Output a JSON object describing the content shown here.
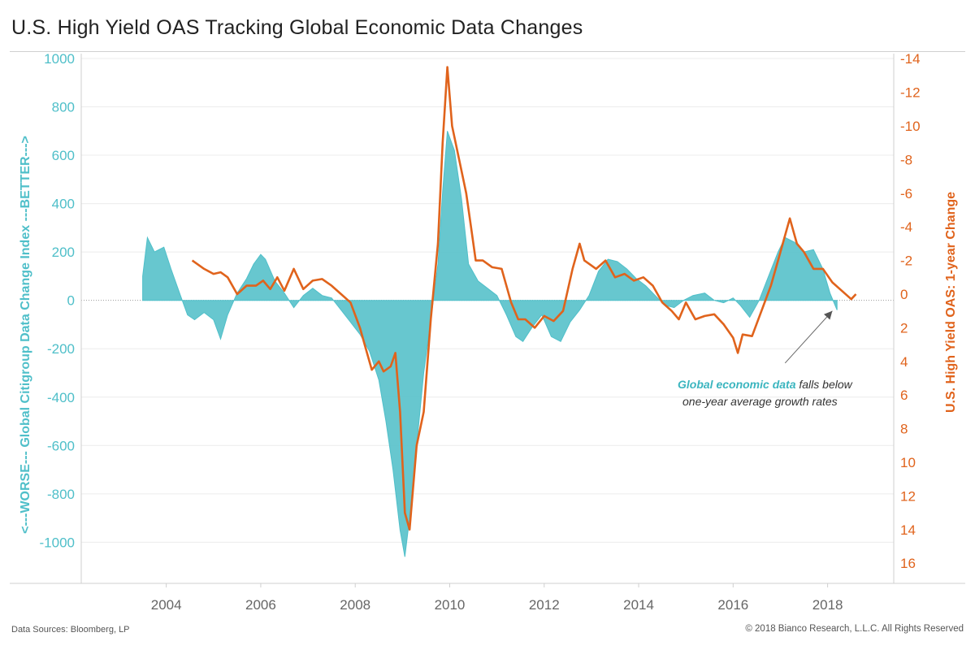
{
  "title": "U.S. High Yield OAS Tracking Global Economic Data Changes",
  "footer": {
    "source": "Data Sources: Bloomberg, LP",
    "copyright": "© 2018 Bianco Research, L.L.C. All Rights Reserved"
  },
  "annotation": {
    "highlight": "Global economic data",
    "line1_rest": " falls below",
    "line2": "one-year average growth rates"
  },
  "colors": {
    "citi": "#4fbfc9",
    "citi_fill": "#5fc4cc",
    "oas": "#e0631c",
    "grid": "#ececec"
  },
  "chart_data": {
    "type": "area",
    "title": "U.S. High Yield OAS Tracking Global Economic Data Changes",
    "x_tick_labels": [
      "2004",
      "2006",
      "2008",
      "2010",
      "2012",
      "2014",
      "2016",
      "2018"
    ],
    "xlim": [
      2002.2,
      2019.4
    ],
    "y_left": {
      "label": "<---WORSE--- Global Citigroup Data Change Index ---BETTER--->",
      "ticks": [
        1000,
        800,
        600,
        400,
        200,
        0,
        -200,
        -400,
        -600,
        -800,
        -1000
      ],
      "ylim": [
        -1170,
        1020
      ]
    },
    "y_right": {
      "label": "U.S. High Yield OAS: 1-year Change",
      "inverted": true,
      "ticks": [
        -14,
        -12,
        -10,
        -8,
        -6,
        -4,
        -2,
        0,
        2,
        4,
        6,
        8,
        10,
        12,
        14,
        16
      ],
      "tick_labels": [
        "-14",
        "-12",
        "-10",
        "-8",
        "-6",
        "-4",
        "-2",
        "0",
        "2",
        "4",
        "6",
        "8",
        "10",
        "12",
        "14",
        "16"
      ],
      "ylim": [
        -14.3,
        17.2
      ]
    },
    "series": [
      {
        "name": "Global Citigroup Data Change Index",
        "axis": "left",
        "type": "area",
        "x": [
          2003.5,
          2003.6,
          2003.75,
          2003.95,
          2004.1,
          2004.3,
          2004.45,
          2004.6,
          2004.8,
          2005.0,
          2005.15,
          2005.3,
          2005.5,
          2005.7,
          2005.85,
          2006.0,
          2006.1,
          2006.3,
          2006.5,
          2006.7,
          2006.9,
          2007.1,
          2007.3,
          2007.5,
          2007.7,
          2007.9,
          2008.1,
          2008.3,
          2008.5,
          2008.65,
          2008.8,
          2008.95,
          2009.05,
          2009.15,
          2009.3,
          2009.45,
          2009.6,
          2009.75,
          2009.85,
          2009.95,
          2010.1,
          2010.25,
          2010.4,
          2010.6,
          2010.8,
          2011.0,
          2011.2,
          2011.4,
          2011.55,
          2011.75,
          2011.95,
          2012.15,
          2012.35,
          2012.55,
          2012.75,
          2012.95,
          2013.15,
          2013.35,
          2013.55,
          2013.75,
          2013.95,
          2014.15,
          2014.35,
          2014.55,
          2014.75,
          2014.95,
          2015.15,
          2015.4,
          2015.6,
          2015.8,
          2016.0,
          2016.15,
          2016.35,
          2016.55,
          2016.75,
          2016.95,
          2017.1,
          2017.3,
          2017.5,
          2017.7,
          2017.9,
          2018.05,
          2018.2
        ],
        "values": [
          100,
          260,
          200,
          220,
          130,
          20,
          -60,
          -80,
          -50,
          -80,
          -160,
          -60,
          30,
          90,
          150,
          190,
          170,
          80,
          30,
          -30,
          20,
          50,
          20,
          10,
          -40,
          -90,
          -140,
          -210,
          -330,
          -500,
          -700,
          -950,
          -1060,
          -900,
          -600,
          -300,
          -80,
          150,
          450,
          700,
          620,
          420,
          150,
          80,
          50,
          20,
          -60,
          -150,
          -170,
          -110,
          -60,
          -150,
          -170,
          -90,
          -40,
          20,
          120,
          170,
          160,
          130,
          90,
          60,
          20,
          -20,
          -30,
          0,
          20,
          30,
          0,
          -10,
          10,
          -20,
          -70,
          0,
          100,
          200,
          260,
          240,
          200,
          210,
          130,
          30,
          -40
        ]
      },
      {
        "name": "U.S. High Yield OAS: 1-year Change",
        "axis": "right",
        "type": "line",
        "x": [
          2004.55,
          2004.8,
          2005.0,
          2005.15,
          2005.3,
          2005.5,
          2005.7,
          2005.9,
          2006.05,
          2006.2,
          2006.35,
          2006.5,
          2006.7,
          2006.9,
          2007.1,
          2007.3,
          2007.5,
          2007.7,
          2007.9,
          2008.1,
          2008.2,
          2008.35,
          2008.5,
          2008.6,
          2008.75,
          2008.85,
          2008.95,
          2009.05,
          2009.15,
          2009.3,
          2009.45,
          2009.6,
          2009.75,
          2009.85,
          2009.95,
          2010.05,
          2010.2,
          2010.35,
          2010.45,
          2010.55,
          2010.7,
          2010.9,
          2011.1,
          2011.3,
          2011.45,
          2011.6,
          2011.8,
          2012.0,
          2012.2,
          2012.4,
          2012.6,
          2012.75,
          2012.85,
          2012.95,
          2013.1,
          2013.3,
          2013.5,
          2013.7,
          2013.9,
          2014.1,
          2014.3,
          2014.5,
          2014.7,
          2014.85,
          2015.0,
          2015.2,
          2015.4,
          2015.6,
          2015.8,
          2016.0,
          2016.1,
          2016.2,
          2016.4,
          2016.6,
          2016.8,
          2016.95,
          2017.1,
          2017.2,
          2017.35,
          2017.5,
          2017.7,
          2017.9,
          2018.1,
          2018.3,
          2018.5,
          2018.6
        ],
        "values": [
          -2,
          -1.5,
          -1.2,
          -1.3,
          -1,
          0,
          -0.5,
          -0.5,
          -0.8,
          -0.3,
          -1,
          -0.2,
          -1.5,
          -0.3,
          -0.8,
          -0.9,
          -0.5,
          0,
          0.5,
          2,
          3,
          4.5,
          4,
          4.6,
          4.3,
          3.5,
          7,
          13,
          14,
          9,
          7,
          1.5,
          -3,
          -9,
          -13.5,
          -10,
          -8,
          -6,
          -4,
          -2,
          -2,
          -1.6,
          -1.5,
          0.5,
          1.5,
          1.5,
          2,
          1.3,
          1.6,
          1,
          -1.5,
          -3,
          -2,
          -1.8,
          -1.5,
          -2,
          -1,
          -1.2,
          -0.8,
          -1,
          -0.5,
          0.5,
          1,
          1.5,
          0.5,
          1.5,
          1.3,
          1.2,
          1.8,
          2.6,
          3.5,
          2.4,
          2.5,
          1,
          -0.5,
          -2,
          -3.5,
          -4.5,
          -3,
          -2.5,
          -1.5,
          -1.5,
          -0.7,
          -0.2,
          0.3,
          0
        ]
      }
    ],
    "annotation_arrow": {
      "from": [
        2017.1,
        4.1
      ],
      "to": [
        2018.1,
        1.0
      ]
    },
    "grid": true
  }
}
